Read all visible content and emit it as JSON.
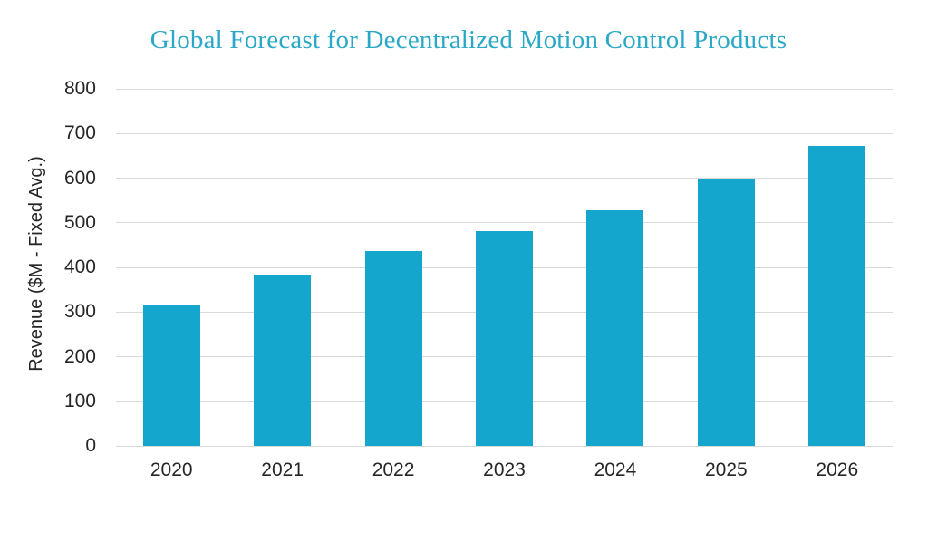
{
  "chart_data": {
    "type": "bar",
    "title": "Global Forecast for Decentralized Motion Control Products",
    "categories": [
      "2020",
      "2021",
      "2022",
      "2023",
      "2024",
      "2025",
      "2026"
    ],
    "values": [
      314,
      383,
      437,
      482,
      528,
      598,
      672
    ],
    "xlabel": "",
    "ylabel": "Revenue ($M - Fixed Avg.)",
    "ylim": [
      0,
      800
    ],
    "yticks": [
      0,
      100,
      200,
      300,
      400,
      500,
      600,
      700,
      800
    ],
    "grid": true,
    "legend": false,
    "colors": {
      "bar": "#14A6CC",
      "title": "#2BA8C8",
      "gridline": "#D9D9D9",
      "axis_text": "#262626",
      "background": "#FFFFFF"
    }
  }
}
